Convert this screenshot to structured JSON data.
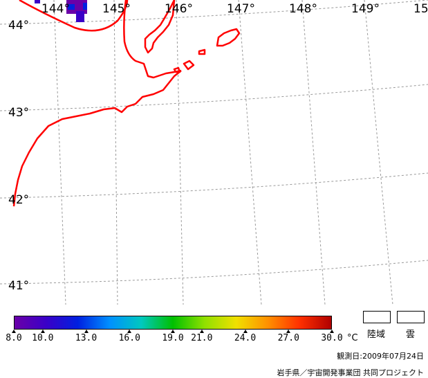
{
  "map": {
    "lon_labels": [
      "144°",
      "145°",
      "146°",
      "147°",
      "148°",
      "149°",
      "15"
    ],
    "lat_labels": [
      "44°",
      "43°",
      "42°",
      "41°"
    ],
    "coast_color": "#ff0000",
    "grid_color": "#999999"
  },
  "colorbar": {
    "min": 8.0,
    "max": 30.0,
    "ticks": [
      "8.0",
      "10.0",
      "13.0",
      "16.0",
      "19.0",
      "21.0",
      "24.0",
      "27.0",
      "30.0"
    ],
    "unit": "°C",
    "colors": [
      "#6a00a8",
      "#3a00c8",
      "#0020e0",
      "#0090ff",
      "#00c8c0",
      "#00c000",
      "#90e000",
      "#f0e000",
      "#ff9000",
      "#ff3000",
      "#b00000"
    ]
  },
  "legend": {
    "land_label": "陸域",
    "cloud_label": "雲"
  },
  "footer": {
    "observation_date": "観測日:2009年07月24日",
    "credit": "岩手県／宇宙開発事業団 共同プロジェクト"
  }
}
